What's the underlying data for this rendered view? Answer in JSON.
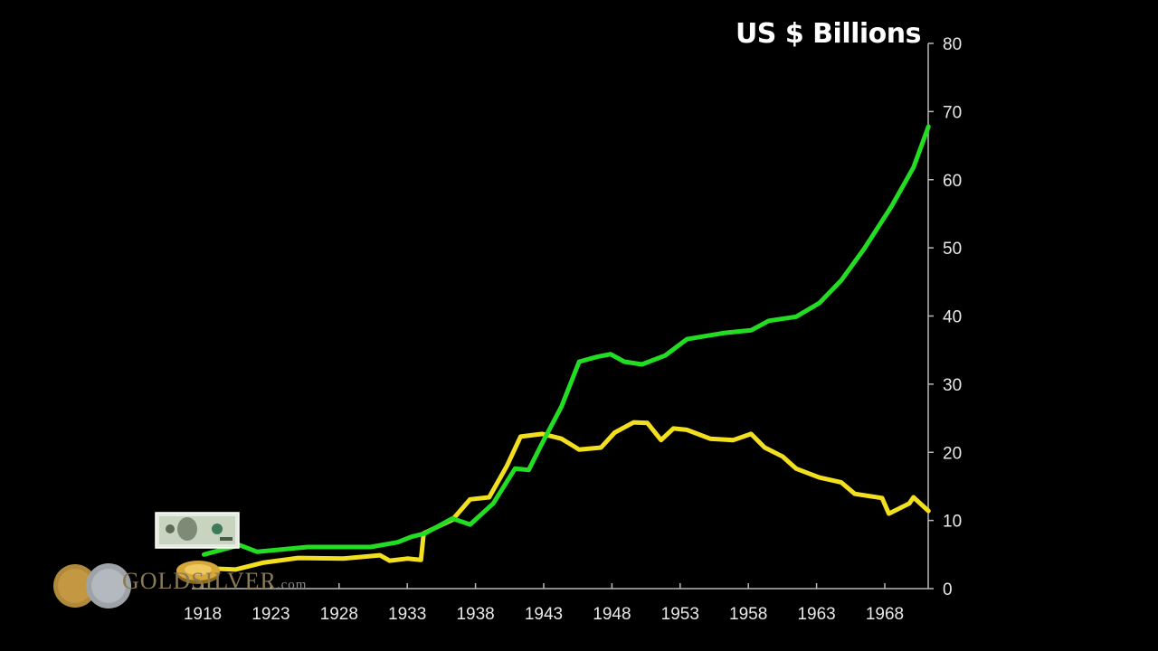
{
  "chart_data": {
    "type": "line",
    "title": "US $ Billions",
    "xlabel": "",
    "ylabel": "US $ Billions",
    "xlim": [
      1918,
      1971.2
    ],
    "ylim": [
      0,
      80
    ],
    "x_ticks": [
      1918,
      1923,
      1928,
      1933,
      1938,
      1943,
      1948,
      1953,
      1958,
      1963,
      1968
    ],
    "y_ticks": [
      0,
      10,
      20,
      30,
      40,
      50,
      60,
      70,
      80
    ],
    "y_axis_side": "right",
    "grid": false,
    "legend": "none (pictorial markers: dollar bill for green series, gold coin for yellow series)",
    "series": [
      {
        "name": "US currency (dollar bill)",
        "color": "#22dd22",
        "points": [
          [
            1918.1,
            5.0
          ],
          [
            1920.7,
            6.4
          ],
          [
            1922.0,
            5.4
          ],
          [
            1925.7,
            6.1
          ],
          [
            1930.3,
            6.1
          ],
          [
            1932.3,
            6.8
          ],
          [
            1933.3,
            7.6
          ],
          [
            1934.3,
            8.1
          ],
          [
            1936.3,
            10.3
          ],
          [
            1937.6,
            9.4
          ],
          [
            1939.3,
            12.5
          ],
          [
            1940.9,
            17.6
          ],
          [
            1941.9,
            17.4
          ],
          [
            1942.9,
            21.4
          ],
          [
            1944.3,
            26.7
          ],
          [
            1945.6,
            33.3
          ],
          [
            1946.9,
            34.0
          ],
          [
            1947.9,
            34.4
          ],
          [
            1948.9,
            33.3
          ],
          [
            1950.2,
            32.9
          ],
          [
            1951.9,
            34.2
          ],
          [
            1953.5,
            36.6
          ],
          [
            1956.2,
            37.5
          ],
          [
            1958.2,
            37.9
          ],
          [
            1959.5,
            39.3
          ],
          [
            1961.5,
            39.9
          ],
          [
            1963.2,
            41.9
          ],
          [
            1964.8,
            45.2
          ],
          [
            1966.5,
            49.9
          ],
          [
            1968.5,
            56.1
          ],
          [
            1970.1,
            61.8
          ],
          [
            1971.2,
            67.8
          ]
        ]
      },
      {
        "name": "Gold (gold coin)",
        "color": "#f2e020",
        "points": [
          [
            1918.0,
            3.0
          ],
          [
            1920.4,
            2.8
          ],
          [
            1922.4,
            3.8
          ],
          [
            1925.0,
            4.5
          ],
          [
            1928.3,
            4.4
          ],
          [
            1931.0,
            4.9
          ],
          [
            1931.7,
            4.1
          ],
          [
            1933.0,
            4.4
          ],
          [
            1934.0,
            4.2
          ],
          [
            1934.2,
            8.1
          ],
          [
            1936.3,
            10.1
          ],
          [
            1937.6,
            13.1
          ],
          [
            1939.0,
            13.4
          ],
          [
            1940.3,
            18.0
          ],
          [
            1941.3,
            22.3
          ],
          [
            1942.9,
            22.7
          ],
          [
            1944.3,
            22.0
          ],
          [
            1945.6,
            20.4
          ],
          [
            1947.2,
            20.7
          ],
          [
            1948.2,
            22.9
          ],
          [
            1949.6,
            24.4
          ],
          [
            1950.6,
            24.3
          ],
          [
            1951.6,
            21.8
          ],
          [
            1952.5,
            23.5
          ],
          [
            1953.5,
            23.3
          ],
          [
            1955.2,
            22.0
          ],
          [
            1956.9,
            21.8
          ],
          [
            1958.2,
            22.7
          ],
          [
            1959.2,
            20.7
          ],
          [
            1960.5,
            19.4
          ],
          [
            1961.5,
            17.6
          ],
          [
            1963.2,
            16.3
          ],
          [
            1964.8,
            15.6
          ],
          [
            1965.8,
            13.9
          ],
          [
            1967.8,
            13.3
          ],
          [
            1968.3,
            11.0
          ],
          [
            1969.8,
            12.5
          ],
          [
            1970.1,
            13.4
          ],
          [
            1971.2,
            11.4
          ]
        ]
      }
    ]
  },
  "watermark": {
    "brand": "GOLDSILVER",
    "suffix": ".com"
  }
}
